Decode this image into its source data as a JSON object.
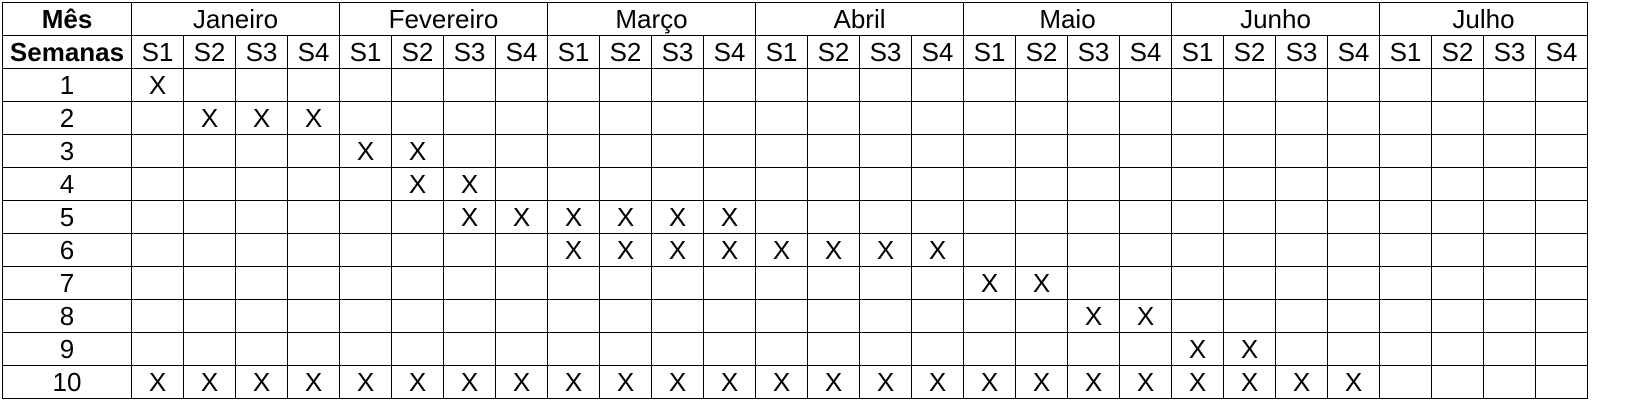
{
  "header": {
    "month_label": "Mês",
    "weeks_label": "Semanas"
  },
  "months": [
    "Janeiro",
    "Fevereiro",
    "Março",
    "Abril",
    "Maio",
    "Junho",
    "Julho"
  ],
  "weeks": [
    "S1",
    "S2",
    "S3",
    "S4"
  ],
  "mark": "X",
  "rows": [
    {
      "label": "1",
      "marks": [
        0
      ]
    },
    {
      "label": "2",
      "marks": [
        1,
        2,
        3
      ]
    },
    {
      "label": "3",
      "marks": [
        4,
        5
      ]
    },
    {
      "label": "4",
      "marks": [
        5,
        6
      ]
    },
    {
      "label": "5",
      "marks": [
        6,
        7,
        8,
        9,
        10,
        11
      ]
    },
    {
      "label": "6",
      "marks": [
        8,
        9,
        10,
        11,
        12,
        13,
        14,
        15
      ]
    },
    {
      "label": "7",
      "marks": [
        16,
        17
      ]
    },
    {
      "label": "8",
      "marks": [
        18,
        19
      ]
    },
    {
      "label": "9",
      "marks": [
        20,
        21
      ]
    },
    {
      "label": "10",
      "marks": [
        0,
        1,
        2,
        3,
        4,
        5,
        6,
        7,
        8,
        9,
        10,
        11,
        12,
        13,
        14,
        15,
        16,
        17,
        18,
        19,
        20,
        21,
        22,
        23
      ]
    }
  ]
}
